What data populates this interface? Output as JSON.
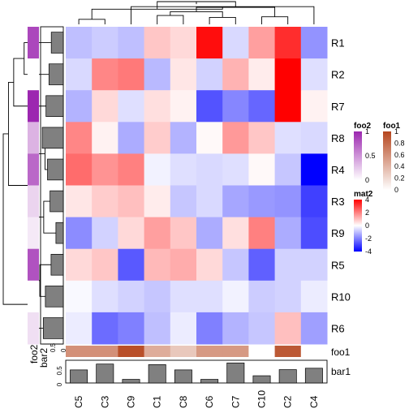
{
  "chart_data": {
    "type": "heatmap",
    "rows": [
      "R1",
      "R2",
      "R7",
      "R8",
      "R4",
      "R3",
      "R9",
      "R5",
      "R10",
      "R6"
    ],
    "cols": [
      "C5",
      "C3",
      "C9",
      "C1",
      "C8",
      "C6",
      "C7",
      "C10",
      "C2",
      "C4"
    ],
    "values": [
      [
        -1.0,
        -0.8,
        -1.0,
        0.9,
        0.6,
        3.8,
        -0.6,
        1.5,
        3.3,
        -1.7
      ],
      [
        -0.6,
        1.9,
        2.1,
        -1.1,
        0.4,
        -0.7,
        1.2,
        0.3,
        4.0,
        -0.5
      ],
      [
        -1.2,
        0.6,
        -0.5,
        0.5,
        0.2,
        -2.7,
        -1.9,
        -2.4,
        4.0,
        0.2
      ],
      [
        1.9,
        0.2,
        -1.3,
        0.8,
        -1.2,
        0.1,
        1.6,
        0.9,
        -0.5,
        -0.6
      ],
      [
        2.3,
        1.7,
        2.0,
        -0.2,
        -0.5,
        -0.6,
        -0.5,
        0.1,
        -0.9,
        -4.0
      ],
      [
        0.4,
        0.8,
        1.0,
        0.3,
        -0.9,
        -0.6,
        -1.4,
        -1.6,
        -1.7,
        -3.0
      ],
      [
        -1.8,
        -0.7,
        0.6,
        1.5,
        0.9,
        -1.3,
        0.5,
        2.0,
        -1.3,
        -2.8
      ],
      [
        0.6,
        0.9,
        -2.6,
        1.1,
        1.3,
        0.6,
        -0.9,
        -2.5,
        -0.7,
        -0.7
      ],
      [
        -0.1,
        -0.5,
        -0.7,
        -0.9,
        -0.5,
        -0.5,
        -0.2,
        -0.8,
        -0.7,
        -0.3
      ],
      [
        -0.3,
        -2.3,
        -2.0,
        -1.0,
        -0.3,
        -2.0,
        -1.2,
        -0.9,
        1.0,
        -1.5
      ]
    ],
    "col_dendrogram": [
      [
        "C4",
        "C9",
        2.8
      ],
      [
        "C1",
        "C8",
        1.4
      ],
      [
        "C10",
        "C2",
        1.2
      ],
      [
        "C6",
        "C7",
        1.1
      ],
      [
        "C3",
        "C5",
        0.8
      ],
      [
        "C1",
        "C6",
        2.0
      ],
      [
        "C1",
        "C10",
        2.7
      ],
      [
        "C3",
        "C9",
        2.4
      ],
      [
        "C3",
        "C1",
        3.6
      ],
      [
        "C3",
        "C4",
        3.2
      ]
    ],
    "row_dendrogram": [
      [
        "R1",
        "R2",
        3.0
      ],
      [
        "R1",
        "R7",
        3.8
      ],
      [
        "R8",
        "R4",
        1.4
      ],
      [
        "R3",
        "R9",
        1.5
      ],
      [
        "R8",
        "R3",
        2.0
      ],
      [
        "R1",
        "R8",
        4.2
      ],
      [
        "R5",
        "R10",
        1.8
      ],
      [
        "R5",
        "R6",
        2.4
      ],
      [
        "R1",
        "R5",
        4.6
      ]
    ],
    "bar1": [
      0.47,
      0.68,
      0.13,
      0.66,
      0.47,
      0.13,
      0.72,
      0.26,
      0.48,
      0.53
    ],
    "bar1_ticks": [
      "0",
      "0.5"
    ],
    "bar2": [
      0.57,
      0.68,
      0.82,
      1.0,
      0.75,
      0.63,
      0.35,
      0.58,
      0.85,
      0.95
    ],
    "bar2_ticks": [
      "0",
      "0.5"
    ],
    "foo1": [
      0.6,
      0.6,
      0.95,
      0.45,
      0.3,
      0.55,
      0.55,
      0.0,
      0.9,
      0.0
    ],
    "foo2": [
      0.85,
      0.0,
      1.0,
      0.35,
      0.7,
      0.2,
      0.1,
      0.8,
      0.0,
      0.15
    ],
    "annotation_labels": {
      "foo1": "foo1",
      "bar1": "bar1",
      "foo2": "foo2",
      "bar2": "bar2"
    },
    "legends": [
      {
        "title": "foo2",
        "ticks": [
          "1",
          "0.5",
          "0"
        ],
        "colors": [
          "#9c27b0",
          "#ffffff"
        ]
      },
      {
        "title": "foo1",
        "ticks": [
          "1",
          "0.8",
          "0.6",
          "0.4",
          "0.2",
          "0"
        ],
        "colors": [
          "#b5461e",
          "#ffffff"
        ]
      },
      {
        "title": "mat2",
        "ticks": [
          "4",
          "2",
          "0",
          "-2",
          "-4"
        ],
        "colors": [
          "#ff0000",
          "#ffffff",
          "#0000ff"
        ]
      }
    ],
    "colors": {
      "high": "#ff0000",
      "mid": "#ffffff",
      "low": "#0000ff",
      "foo1": "#b5461e",
      "foo2": "#9c27b0",
      "bar": "#808080"
    }
  }
}
